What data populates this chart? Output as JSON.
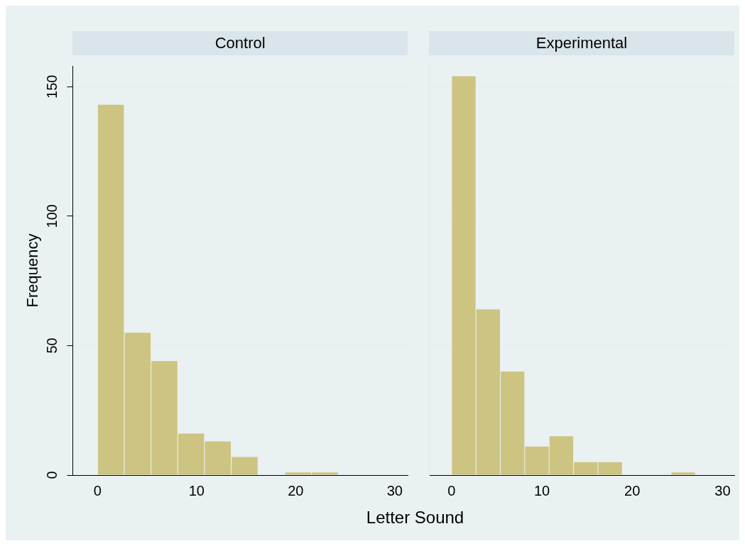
{
  "chart_data": [
    {
      "type": "histogram",
      "title": "Control",
      "ylabel": "Frequency",
      "xlabel": "Letter Sound",
      "bins": [
        0,
        2.7,
        5.4,
        8.1,
        10.8,
        13.5,
        16.2,
        18.9,
        21.6,
        24.3
      ],
      "values": [
        143,
        55,
        44,
        16,
        13,
        7,
        0,
        1,
        1
      ],
      "color": "#cdc481",
      "xlim": [
        -2.5,
        31.3
      ],
      "xticks": [
        0,
        10,
        20,
        30
      ],
      "ylim": [
        0,
        158
      ],
      "yticks": [
        0,
        50,
        100,
        150
      ],
      "grid": "y"
    },
    {
      "type": "histogram",
      "title": "Experimental",
      "bins": [
        0,
        2.7,
        5.4,
        8.1,
        10.8,
        13.5,
        16.2,
        18.9,
        21.6,
        24.3,
        27
      ],
      "values": [
        154,
        64,
        40,
        11,
        15,
        5,
        5,
        0,
        0,
        1
      ],
      "color": "#cdc481",
      "xlim": [
        -2.5,
        31.3
      ],
      "xticks": [
        0,
        10,
        20,
        30
      ],
      "ylim": [
        0,
        158
      ],
      "yticks": [
        0,
        50,
        100,
        150
      ],
      "grid": "y",
      "tick_labels": "x"
    }
  ]
}
